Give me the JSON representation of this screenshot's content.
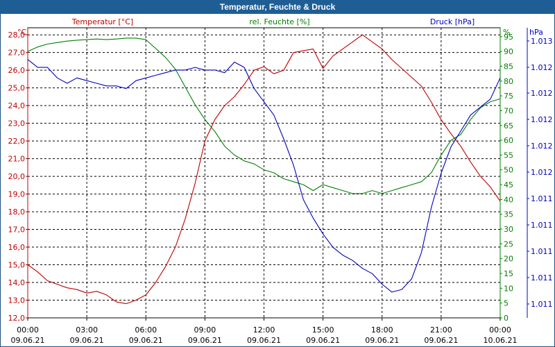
{
  "window": {
    "title": "Temperatur, Feuchte & Druck"
  },
  "chart_data": {
    "type": "line",
    "title": "Temperatur, Feuchte & Druck",
    "colors": {
      "temperature": "#c00000",
      "humidity": "#008000",
      "pressure": "#0000c0"
    },
    "axes": {
      "temperature": {
        "label": "Temperatur [°C]",
        "unit": "°C",
        "range": [
          12.0,
          28.4
        ],
        "ticks": [
          "12,0",
          "13,0",
          "14,0",
          "15,0",
          "16,0",
          "17,0",
          "18,0",
          "19,0",
          "20,0",
          "21,0",
          "22,0",
          "23,0",
          "24,0",
          "25,0",
          "26,0",
          "27,0",
          "28,0"
        ]
      },
      "humidity": {
        "label": "rel. Feuchte [%]",
        "unit": "%",
        "range": [
          0,
          98
        ],
        "ticks": [
          "0",
          "5",
          "10",
          "15",
          "20",
          "25",
          "30",
          "35",
          "40",
          "45",
          "50",
          "55",
          "60",
          "65",
          "70",
          "75",
          "80",
          "85",
          "90",
          "95"
        ]
      },
      "pressure": {
        "label": "Druck [hPa]",
        "unit": "hPa",
        "ticks": [
          "1.011",
          "1.011",
          "1.011",
          "1.011",
          "1.011",
          "1.012",
          "1.012",
          "1.012",
          "1.012",
          "1.012",
          "1.013"
        ]
      }
    },
    "x_ticks": [
      {
        "time": "00:00",
        "date": "09.06.21"
      },
      {
        "time": "03:00",
        "date": "09.06.21"
      },
      {
        "time": "06:00",
        "date": "09.06.21"
      },
      {
        "time": "09:00",
        "date": "09.06.21"
      },
      {
        "time": "12:00",
        "date": "09.06.21"
      },
      {
        "time": "15:00",
        "date": "09.06.21"
      },
      {
        "time": "18:00",
        "date": "09.06.21"
      },
      {
        "time": "21:00",
        "date": "09.06.21"
      },
      {
        "time": "00:00",
        "date": "10.06.21"
      }
    ],
    "x_range_hours": [
      0,
      24
    ],
    "grid": true,
    "series": [
      {
        "name": "Temperatur",
        "axis": "temperature",
        "hours": [
          0,
          0.5,
          1,
          1.5,
          2,
          2.5,
          3,
          3.5,
          4,
          4.5,
          5,
          5.5,
          6,
          6.5,
          7,
          7.5,
          8,
          8.5,
          9,
          9.5,
          10,
          10.5,
          11,
          11.5,
          12,
          12.5,
          13,
          13.5,
          14,
          14.5,
          15,
          15.5,
          16,
          16.5,
          17,
          17.5,
          18,
          18.5,
          19,
          19.5,
          20,
          20.5,
          21,
          21.5,
          22,
          22.5,
          23,
          23.5,
          24
        ],
        "values": [
          15.0,
          14.6,
          14.1,
          13.9,
          13.7,
          13.6,
          13.4,
          13.5,
          13.3,
          12.9,
          12.8,
          13.0,
          13.3,
          14.0,
          14.9,
          16.0,
          17.6,
          19.6,
          22.0,
          23.2,
          24.0,
          24.5,
          25.2,
          26.0,
          26.2,
          25.8,
          26.0,
          27.0,
          27.1,
          27.2,
          26.1,
          26.8,
          27.2,
          27.6,
          28.0,
          27.6,
          27.2,
          26.6,
          26.1,
          25.6,
          25.1,
          24.2,
          23.2,
          22.4,
          21.7,
          20.8,
          20.0,
          19.4,
          18.6
        ]
      },
      {
        "name": "rel. Feuchte",
        "axis": "humidity",
        "hours": [
          0,
          0.5,
          1,
          1.5,
          2,
          2.5,
          3,
          3.5,
          4,
          4.5,
          5,
          5.5,
          6,
          6.5,
          7,
          7.5,
          8,
          8.5,
          9,
          9.5,
          10,
          10.5,
          11,
          11.5,
          12,
          12.5,
          13,
          13.5,
          14,
          14.5,
          15,
          15.5,
          16,
          16.5,
          17,
          17.5,
          18,
          18.5,
          19,
          19.5,
          20,
          20.5,
          21,
          21.5,
          22,
          22.5,
          23,
          23.5,
          24
        ],
        "values": [
          90,
          91.5,
          92.5,
          93,
          93.5,
          93.8,
          94,
          94.2,
          94,
          94.2,
          94.5,
          94.5,
          94,
          91,
          88,
          84,
          78,
          72,
          67,
          63,
          58,
          55,
          53,
          52,
          50,
          49,
          47,
          46,
          45,
          43,
          45,
          44,
          43,
          42,
          42,
          43,
          42,
          43,
          44,
          45,
          46,
          49,
          55,
          60,
          62,
          67,
          71,
          73,
          74
        ]
      },
      {
        "name": "Druck",
        "axis": "pressure",
        "y_scale": "relative (0 = bottom of scale, 1 = top of scale)",
        "hours": [
          0,
          0.5,
          1,
          1.5,
          2,
          2.5,
          3,
          3.5,
          4,
          4.5,
          5,
          5.5,
          6,
          6.5,
          7,
          7.5,
          8,
          8.5,
          9,
          9.5,
          10,
          10.5,
          11,
          11.5,
          12,
          12.5,
          13,
          13.5,
          14,
          14.5,
          15,
          15.5,
          16,
          16.5,
          17,
          17.5,
          18,
          18.5,
          19,
          19.5,
          20,
          20.5,
          21,
          21.5,
          22,
          22.5,
          23,
          23.5,
          24
        ],
        "values": [
          0.93,
          0.9,
          0.9,
          0.86,
          0.84,
          0.86,
          0.85,
          0.84,
          0.83,
          0.83,
          0.82,
          0.85,
          0.86,
          0.87,
          0.88,
          0.89,
          0.89,
          0.9,
          0.89,
          0.89,
          0.88,
          0.92,
          0.9,
          0.82,
          0.77,
          0.72,
          0.63,
          0.53,
          0.4,
          0.33,
          0.27,
          0.22,
          0.19,
          0.17,
          0.14,
          0.12,
          0.08,
          0.05,
          0.06,
          0.1,
          0.2,
          0.37,
          0.5,
          0.6,
          0.66,
          0.72,
          0.75,
          0.78,
          0.86
        ]
      }
    ]
  }
}
